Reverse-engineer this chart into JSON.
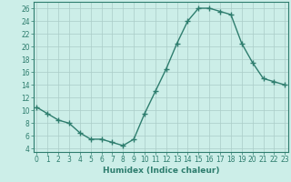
{
  "x": [
    0,
    1,
    2,
    3,
    4,
    5,
    6,
    7,
    8,
    9,
    10,
    11,
    12,
    13,
    14,
    15,
    16,
    17,
    18,
    19,
    20,
    21,
    22,
    23
  ],
  "y": [
    10.5,
    9.5,
    8.5,
    8.0,
    6.5,
    5.5,
    5.5,
    5.0,
    4.5,
    5.5,
    9.5,
    13.0,
    16.5,
    20.5,
    24.0,
    26.0,
    26.0,
    25.5,
    25.0,
    20.5,
    17.5,
    15.0,
    14.5,
    14.0
  ],
  "xlabel": "Humidex (Indice chaleur)",
  "xlim": [
    -0.3,
    23.3
  ],
  "ylim": [
    3.5,
    27
  ],
  "yticks": [
    4,
    6,
    8,
    10,
    12,
    14,
    16,
    18,
    20,
    22,
    24,
    26
  ],
  "xticks": [
    0,
    1,
    2,
    3,
    4,
    5,
    6,
    7,
    8,
    9,
    10,
    11,
    12,
    13,
    14,
    15,
    16,
    17,
    18,
    19,
    20,
    21,
    22,
    23
  ],
  "line_color": "#2e7d6e",
  "marker": "+",
  "marker_size": 4,
  "marker_linewidth": 1.0,
  "linewidth": 1.0,
  "bg_color": "#cceee8",
  "grid_color": "#aaccc8",
  "label_fontsize": 6.5,
  "tick_fontsize": 5.5
}
